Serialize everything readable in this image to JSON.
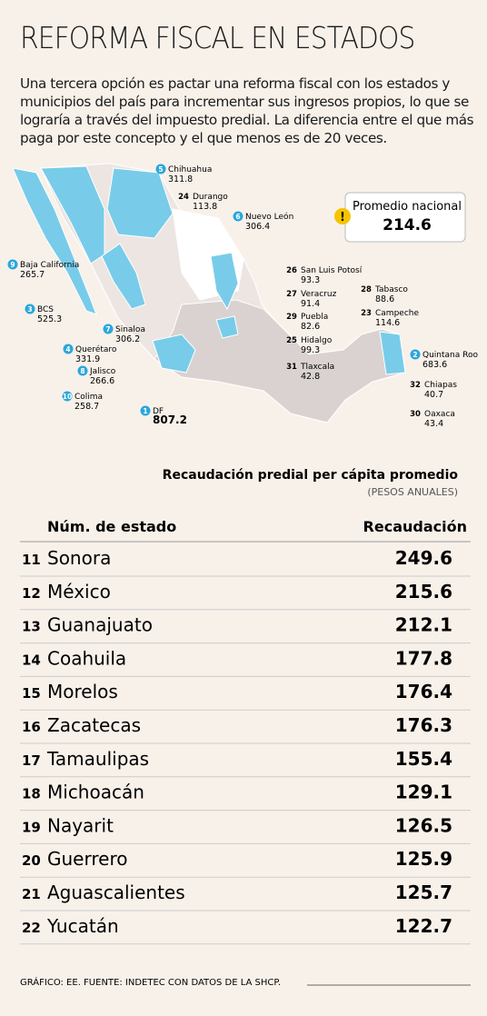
{
  "header": {
    "title": "REFORMA FISCAL EN ESTADOS",
    "text": "Una tercera opción es pactar una reforma fiscal con los estados y municipios del país para incrementar sus ingresos propios, lo que se lograría a través del impuesto predial. La diferencia entre el que más paga por este concepto y el que menos es de 20 veces."
  },
  "map": {
    "average": {
      "label": "Promedio nacional",
      "value": 214.6
    },
    "labels": [
      {
        "rank": 5,
        "name": "Chihuahua",
        "value": 311.8
      },
      {
        "rank": 24,
        "name": "Durango",
        "value": 113.8
      },
      {
        "rank": 6,
        "name": "Nuevo León",
        "value": 306.4
      },
      {
        "rank": 9,
        "name": "Baja California",
        "value": 265.7
      },
      {
        "rank": 26,
        "name": "San Luis Potosí",
        "value": 93.3
      },
      {
        "rank": 27,
        "name": "Veracruz",
        "value": 91.4
      },
      {
        "rank": 28,
        "name": "Tabasco",
        "value": 88.6
      },
      {
        "rank": 3,
        "name": "BCS",
        "value": 525.3
      },
      {
        "rank": 29,
        "name": "Puebla",
        "value": 82.6
      },
      {
        "rank": 23,
        "name": "Campeche",
        "value": 114.6
      },
      {
        "rank": 7,
        "name": "Sinaloa",
        "value": 306.2
      },
      {
        "rank": 25,
        "name": "Hidalgo",
        "value": 99.3
      },
      {
        "rank": 4,
        "name": "Querétaro",
        "value": 331.9
      },
      {
        "rank": 2,
        "name": "Quintana Roo",
        "value": 683.6
      },
      {
        "rank": 31,
        "name": "Tlaxcala",
        "value": 42.8
      },
      {
        "rank": 8,
        "name": "Jalisco",
        "value": 266.6
      },
      {
        "rank": 32,
        "name": "Chiapas",
        "value": 40.7
      },
      {
        "rank": 10,
        "name": "Colima",
        "value": 258.7
      },
      {
        "rank": 1,
        "name": "DF",
        "value": 807.2
      },
      {
        "rank": 30,
        "name": "Oaxaca",
        "value": 43.4
      }
    ]
  },
  "table": {
    "title": "Recaudación predial per cápita promedio",
    "subtitle": "(PESOS ANUALES)",
    "columns": [
      "Núm. de estado",
      "Recaudación"
    ],
    "rows": [
      [
        11,
        "Sonora",
        249.6
      ],
      [
        12,
        "México",
        215.6
      ],
      [
        13,
        "Guanajuato",
        212.1
      ],
      [
        14,
        "Coahuila",
        177.8
      ],
      [
        15,
        "Morelos",
        176.4
      ],
      [
        16,
        "Zacatecas",
        176.3
      ],
      [
        17,
        "Tamaulipas",
        155.4
      ],
      [
        18,
        "Michoacán",
        129.1
      ],
      [
        19,
        "Nayarit",
        126.5
      ],
      [
        20,
        "Guerrero",
        125.9
      ],
      [
        21,
        "Aguascalientes",
        125.7
      ],
      [
        22,
        "Yucatán",
        122.7
      ]
    ]
  },
  "footer": "GRÁFICO: EE. FUENTE: INDETEC CON DATOS DE LA SHCP."
}
